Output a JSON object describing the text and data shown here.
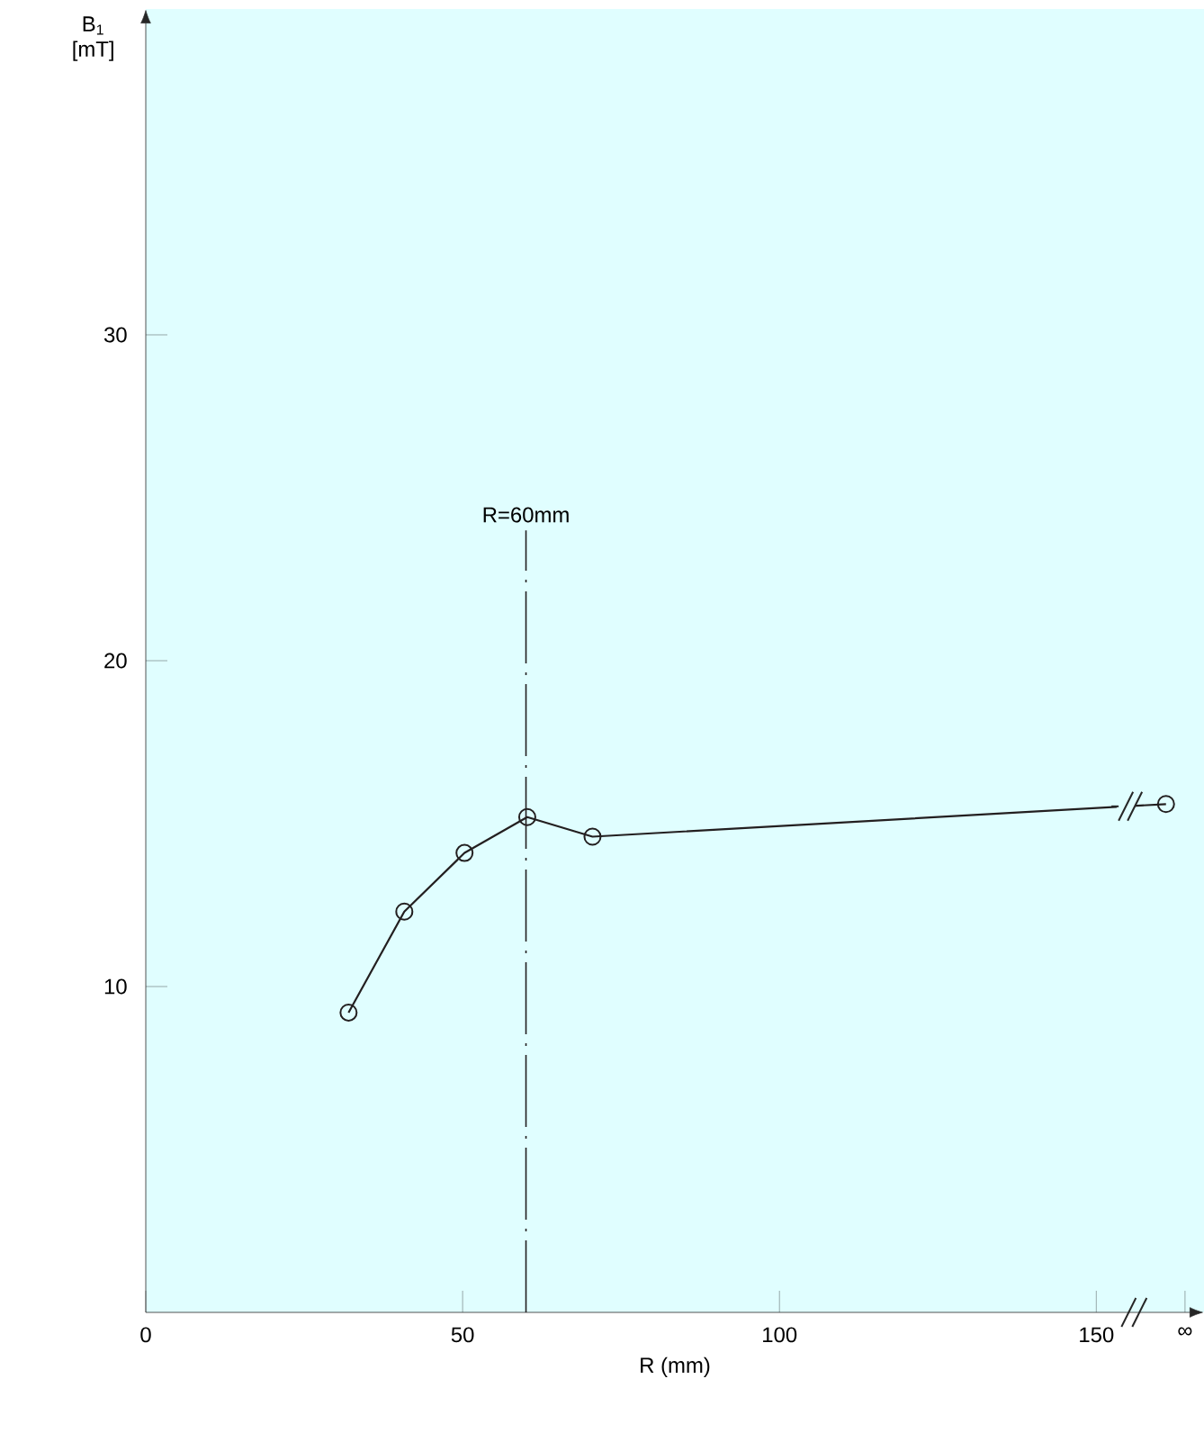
{
  "chart_data": {
    "type": "line",
    "xlabel": "R (mm)",
    "ylabel": "B$_{1}$ [mT]",
    "x": [
      32,
      40.8,
      50.3,
      60.2,
      70.5,
      161
    ],
    "series": [
      {
        "color": "#231f20",
        "values": [
          9.2,
          12.3,
          14.1,
          15.2,
          14.6,
          15.6
        ]
      }
    ],
    "marker": "circle",
    "xlim": [
      0,
      167
    ],
    "ylim": [
      0,
      40
    ],
    "xticks": [
      0,
      50,
      100,
      150,
      {
        "value": 164,
        "label": "∞"
      }
    ],
    "yticks": [
      10,
      20,
      30
    ],
    "ref_lines": [
      {
        "axis": "x",
        "value": 60,
        "label": "R=60mm",
        "line_style": "dashed",
        "color": "#231f20"
      }
    ]
  }
}
